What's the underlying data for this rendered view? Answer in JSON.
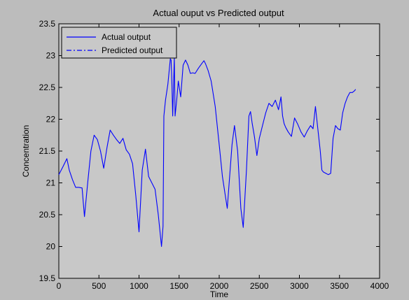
{
  "window": {
    "background": "#bcbcbc",
    "plot_background": "#c8c8c8"
  },
  "chart_data": {
    "type": "line",
    "title": "Actual ouput vs Predicted output",
    "xlabel": "Time",
    "ylabel": "Concentration",
    "xlim": [
      0,
      4000
    ],
    "ylim": [
      19.5,
      23.5
    ],
    "xticks": [
      0,
      500,
      1000,
      1500,
      2000,
      2500,
      3000,
      3500,
      4000
    ],
    "yticks": [
      19.5,
      20,
      20.5,
      21,
      21.5,
      22,
      22.5,
      23,
      23.5
    ],
    "xtick_labels": [
      "0",
      "500",
      "1000",
      "1500",
      "2000",
      "2500",
      "3000",
      "3500",
      "4000"
    ],
    "ytick_labels": [
      "19.5",
      "20",
      "20.5",
      "21",
      "21.5",
      "22",
      "22.5",
      "23",
      "23.5"
    ],
    "grid": false,
    "legend_position": "top-left",
    "series": [
      {
        "name": "Actual output",
        "style": "solid",
        "color": "#0000ff",
        "x": [
          0,
          50,
          100,
          130,
          170,
          210,
          250,
          290,
          320,
          360,
          400,
          440,
          480,
          520,
          560,
          600,
          640,
          680,
          720,
          760,
          800,
          840,
          880,
          920,
          960,
          1000,
          1040,
          1080,
          1120,
          1160,
          1200,
          1240,
          1280,
          1300,
          1310,
          1330,
          1360,
          1390,
          1400,
          1410,
          1420,
          1440,
          1450,
          1470,
          1490,
          1520,
          1550,
          1580,
          1610,
          1640,
          1670,
          1700,
          1740,
          1780,
          1810,
          1830,
          1860,
          1900,
          1950,
          2000,
          2040,
          2070,
          2100,
          2130,
          2160,
          2190,
          2230,
          2270,
          2300,
          2340,
          2370,
          2390,
          2410,
          2440,
          2470,
          2500,
          2540,
          2580,
          2620,
          2660,
          2700,
          2740,
          2770,
          2790,
          2810,
          2830,
          2860,
          2900,
          2940,
          2980,
          3020,
          3060,
          3100,
          3140,
          3170,
          3200,
          3230,
          3260,
          3280,
          3300,
          3330,
          3360,
          3390,
          3420,
          3450,
          3480,
          3510,
          3540,
          3570,
          3600,
          3630,
          3660,
          3690,
          3700
        ],
        "y": [
          21.13,
          21.25,
          21.38,
          21.2,
          21.05,
          20.93,
          20.93,
          20.92,
          20.47,
          21.0,
          21.5,
          21.75,
          21.68,
          21.5,
          21.23,
          21.55,
          21.83,
          21.75,
          21.68,
          21.62,
          21.7,
          21.52,
          21.45,
          21.3,
          20.8,
          20.23,
          21.2,
          21.53,
          21.1,
          21.0,
          20.9,
          20.5,
          20.0,
          20.32,
          22.05,
          22.3,
          22.55,
          22.95,
          22.93,
          22.6,
          22.05,
          22.97,
          22.05,
          22.3,
          22.6,
          22.35,
          22.85,
          22.93,
          22.85,
          22.72,
          22.73,
          22.72,
          22.8,
          22.87,
          22.92,
          22.87,
          22.77,
          22.6,
          22.2,
          21.6,
          21.1,
          20.85,
          20.6,
          21.1,
          21.6,
          21.9,
          21.5,
          20.6,
          20.3,
          21.2,
          22.05,
          22.12,
          21.95,
          21.72,
          21.43,
          21.7,
          21.9,
          22.1,
          22.25,
          22.2,
          22.3,
          22.15,
          22.35,
          22.05,
          21.93,
          21.87,
          21.8,
          21.73,
          22.02,
          21.92,
          21.8,
          21.72,
          21.82,
          21.9,
          21.85,
          22.2,
          21.85,
          21.5,
          21.2,
          21.17,
          21.15,
          21.13,
          21.15,
          21.7,
          21.9,
          21.85,
          21.83,
          22.1,
          22.25,
          22.35,
          22.42,
          22.42,
          22.45,
          22.47
        ],
        "y_note": ""
      },
      {
        "name": "Predicted output",
        "style": "dashdot",
        "color": "#0000ff",
        "x": [],
        "y": []
      }
    ]
  }
}
